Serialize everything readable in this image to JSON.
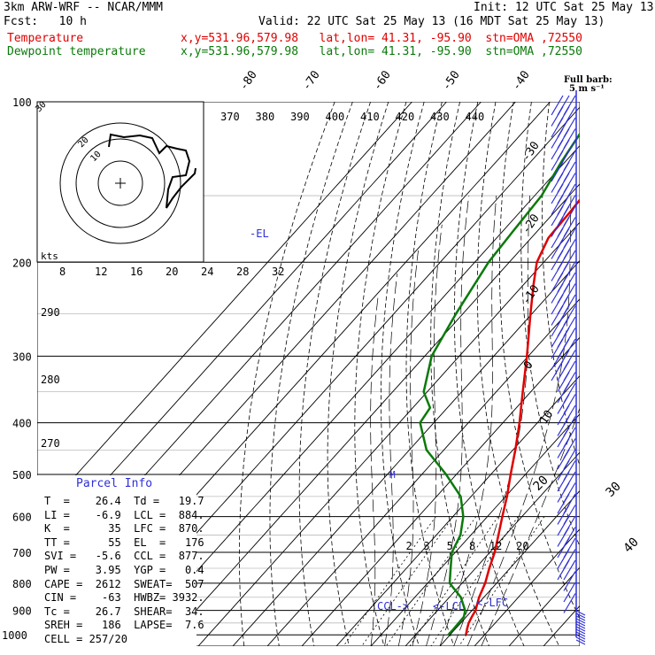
{
  "header": {
    "model": "3km ARW-WRF -- NCAR/MMM",
    "init": "Init: 12 UTC Sat 25 May 13",
    "fcst": "Fcst:   10 h",
    "valid": "Valid: 22 UTC Sat 25 May 13 (16 MDT Sat 25 May 13)",
    "temp_name": "Temperature",
    "temp_loc": "x,y=531.96,579.98   lat,lon= 41.31, -95.90  stn=OMA ,72550",
    "dew_name": "Dewpoint temperature",
    "dew_loc": "x,y=531.96,579.98   lat,lon= 41.31, -95.90  stn=OMA ,72550"
  },
  "colors": {
    "temperature": "#e00000",
    "dewpoint": "#0a7a0a",
    "wind": "#2f2fd8",
    "grid": "#000000"
  },
  "barb_key": {
    "line1": "Full barb:",
    "line2": "5 m s⁻¹"
  },
  "kts_label": "kts",
  "chart_data": {
    "type": "line",
    "title": "",
    "ylabel": "",
    "pressure_levels": [
      100,
      200,
      300,
      400,
      500,
      600,
      700,
      800,
      900,
      1000
    ],
    "pressure_labels": [
      "100",
      "200",
      "300",
      "400",
      "500",
      "600",
      "700",
      "800",
      "900",
      "1000"
    ],
    "theta_labels": [
      "370",
      "380",
      "390",
      "400",
      "410",
      "420",
      "430",
      "440"
    ],
    "isotherm_labels": [
      "-80",
      "-70",
      "-60",
      "-50",
      "-40",
      "-30",
      "-20",
      "-10",
      "0",
      "10",
      "20",
      "30",
      "40"
    ],
    "mixing_ratio_labels": [
      "2",
      "3",
      "5",
      "8",
      "12",
      "20"
    ],
    "hodo_speed_labels": [
      "8",
      "12",
      "16",
      "20",
      "24",
      "28",
      "32"
    ],
    "left_scale_labels": [
      "290",
      "280",
      "270"
    ],
    "hodo_ring_labels": [
      "30",
      "20",
      "10"
    ],
    "annotations": {
      "el": "-EL",
      "m": "M",
      "ccl": "CCL->",
      "lcl": "<-LCL",
      "lfc": "<-LFC"
    },
    "series": [
      {
        "name": "Temperature",
        "points": [
          [
            1000,
            24.6
          ],
          [
            975,
            23.4
          ],
          [
            950,
            22.3
          ],
          [
            925,
            21.6
          ],
          [
            900,
            21.0
          ],
          [
            850,
            18.6
          ],
          [
            800,
            16.7
          ],
          [
            750,
            14.0
          ],
          [
            700,
            11.4
          ],
          [
            650,
            8.0
          ],
          [
            600,
            4.3
          ],
          [
            550,
            0.4
          ],
          [
            500,
            -4.3
          ],
          [
            450,
            -9.3
          ],
          [
            400,
            -15.2
          ],
          [
            350,
            -22.3
          ],
          [
            300,
            -30.4
          ],
          [
            250,
            -40.4
          ],
          [
            220,
            -47.2
          ],
          [
            200,
            -52.0
          ],
          [
            180,
            -55.0
          ],
          [
            160,
            -55.5
          ],
          [
            140,
            -56.4
          ],
          [
            120,
            -57.2
          ],
          [
            110,
            -57.8
          ],
          [
            100,
            -58.0
          ]
        ]
      },
      {
        "name": "Dewpoint temperature",
        "points": [
          [
            1000,
            19.5
          ],
          [
            975,
            19.5
          ],
          [
            950,
            19.4
          ],
          [
            925,
            19.3
          ],
          [
            900,
            18.0
          ],
          [
            850,
            13.3
          ],
          [
            800,
            6.4
          ],
          [
            750,
            2.8
          ],
          [
            700,
            -1.0
          ],
          [
            650,
            -3.0
          ],
          [
            600,
            -7.0
          ],
          [
            550,
            -13.0
          ],
          [
            500,
            -23.0
          ],
          [
            450,
            -35.0
          ],
          [
            400,
            -44.0
          ],
          [
            375,
            -45.0
          ],
          [
            350,
            -51.0
          ],
          [
            300,
            -58.0
          ],
          [
            250,
            -62.0
          ],
          [
            200,
            -66.0
          ],
          [
            175,
            -67.0
          ],
          [
            150,
            -68.0
          ],
          [
            130,
            -71.0
          ],
          [
            115,
            -73.0
          ],
          [
            100,
            -75.0
          ]
        ]
      }
    ]
  },
  "parcel_info": {
    "title": "Parcel Info",
    "rows": [
      "T  =    26.4  Td =   19.7",
      "LI =    -6.9  LCL =  884.",
      "K  =      35  LFC =  870.",
      "TT =      55  EL  =   176",
      "SVI =   -5.6  CCL =  877.",
      "PW =    3.95  YGP =   0.4",
      "CAPE =  2612  SWEAT=  507",
      "CIN =    -63  HWBZ= 3932.",
      "Tc =    26.7  SHEAR=  34.",
      "SREH =   186  LAPSE=  7.6",
      "CELL = 257/20"
    ]
  }
}
